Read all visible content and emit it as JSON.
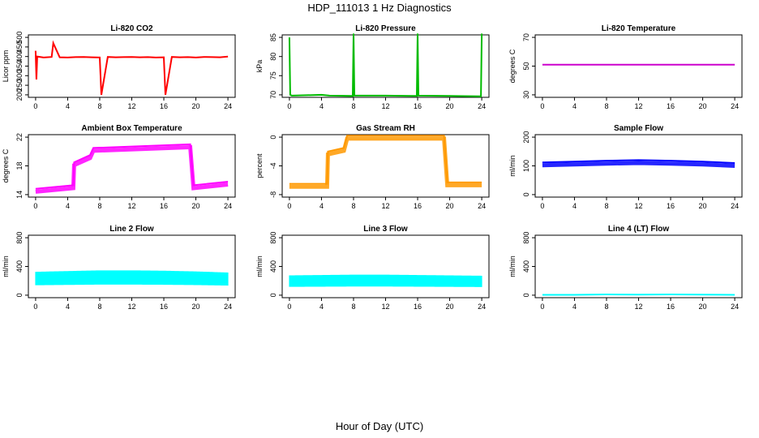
{
  "figure": {
    "title": "HDP_111013  1 Hz Diagnostics",
    "xlabel": "Hour of Day (UTC)"
  },
  "chart_data": [
    {
      "type": "line",
      "title": "Li-820 CO2",
      "ylabel": "Licor ppm",
      "color": "#ff0000",
      "xlim": [
        0,
        24
      ],
      "ylim": [
        200,
        500
      ],
      "xticks": [
        0,
        4,
        8,
        12,
        16,
        20,
        24
      ],
      "yticks": [
        200,
        250,
        300,
        350,
        400,
        450,
        500
      ],
      "series": [
        {
          "name": "",
          "x": [
            0,
            0.1,
            0.2,
            1,
            2,
            2.2,
            3,
            4,
            5,
            6,
            7,
            8,
            8.2,
            9,
            10,
            11,
            12,
            13,
            14,
            15,
            16,
            16.2,
            17,
            18,
            19,
            20,
            21,
            22,
            23,
            24
          ],
          "y": [
            430,
            280,
            400,
            395,
            398,
            470,
            396,
            395,
            397,
            398,
            396,
            395,
            200,
            398,
            396,
            397,
            398,
            396,
            397,
            395,
            396,
            200,
            398,
            396,
            397,
            395,
            398,
            397,
            396,
            400
          ]
        }
      ]
    },
    {
      "type": "line",
      "title": "Li-820 Pressure",
      "ylabel": "kPa",
      "color": "#00bb00",
      "xlim": [
        0,
        24
      ],
      "ylim": [
        70,
        85
      ],
      "xticks": [
        0,
        4,
        8,
        12,
        16,
        20,
        24
      ],
      "yticks": [
        70,
        75,
        80,
        85
      ],
      "series": [
        {
          "name": "",
          "x": [
            0,
            0.1,
            0.3,
            4,
            5,
            7.9,
            8,
            8.1,
            12,
            15.9,
            16,
            16.1,
            20,
            23.9,
            24
          ],
          "y": [
            85,
            70,
            69.8,
            70,
            69.8,
            69.7,
            86,
            69.8,
            69.8,
            69.7,
            86,
            69.8,
            69.7,
            69.6,
            86
          ]
        }
      ]
    },
    {
      "type": "line",
      "title": "Li-820 Temperature",
      "ylabel": "degrees C",
      "color": "#cc00cc",
      "xlim": [
        0,
        24
      ],
      "ylim": [
        30,
        70
      ],
      "xticks": [
        0,
        4,
        8,
        12,
        16,
        20,
        24
      ],
      "yticks": [
        30,
        50,
        70
      ],
      "series": [
        {
          "name": "",
          "x": [
            0,
            24
          ],
          "y": [
            51,
            51
          ]
        }
      ]
    },
    {
      "type": "line",
      "title": "Ambient Box Temperature",
      "ylabel": "degrees C",
      "color": "#ff00ff",
      "xlim": [
        0,
        24
      ],
      "ylim": [
        14,
        22
      ],
      "xticks": [
        0,
        4,
        8,
        12,
        16,
        20,
        24
      ],
      "yticks": [
        14,
        18,
        22
      ],
      "series": [
        {
          "name": "",
          "x": [
            0,
            4.7,
            4.8,
            6.8,
            7.2,
            19.3,
            19.7,
            24
          ],
          "y": [
            14.8,
            15.3,
            18.5,
            19.5,
            20.5,
            21,
            15.3,
            15.8
          ]
        }
      ]
    },
    {
      "type": "line",
      "title": "Gas Stream RH",
      "ylabel": "percent",
      "color": "#ff9900",
      "xlim": [
        0,
        24
      ],
      "ylim": [
        -8,
        0
      ],
      "xticks": [
        0,
        4,
        8,
        12,
        16,
        20,
        24
      ],
      "yticks": [
        -8,
        -4,
        0
      ],
      "series": [
        {
          "name": "",
          "x": [
            0,
            4.7,
            4.8,
            6.8,
            7.2,
            19.3,
            19.7,
            24
          ],
          "y": [
            -6.5,
            -6.5,
            -2,
            -1.5,
            0.2,
            0.2,
            -6.3,
            -6.3
          ]
        }
      ]
    },
    {
      "type": "line",
      "title": "Sample Flow",
      "ylabel": "ml/min",
      "color": "#0000ff",
      "xlim": [
        0,
        24
      ],
      "ylim": [
        0,
        200
      ],
      "xticks": [
        0,
        4,
        8,
        12,
        16,
        20,
        24
      ],
      "yticks": [
        0,
        100,
        200
      ],
      "series": [
        {
          "name": "",
          "x": [
            0,
            4,
            8,
            12,
            16,
            20,
            24
          ],
          "y": [
            112,
            115,
            118,
            120,
            118,
            115,
            110
          ]
        }
      ]
    },
    {
      "type": "area",
      "title": "Line 2 Flow",
      "ylabel": "ml/min",
      "color": "#00ffff",
      "xlim": [
        0,
        24
      ],
      "ylim": [
        0,
        800
      ],
      "xticks": [
        0,
        4,
        8,
        12,
        16,
        20,
        24
      ],
      "yticks": [
        0,
        400,
        800
      ],
      "series": [
        {
          "name": "",
          "x": [
            0,
            4,
            8,
            12,
            16,
            20,
            24
          ],
          "y": [
            320,
            330,
            340,
            340,
            335,
            325,
            310
          ]
        }
      ]
    },
    {
      "type": "area",
      "title": "Line 3 Flow",
      "ylabel": "ml/min",
      "color": "#00ffff",
      "xlim": [
        0,
        24
      ],
      "ylim": [
        0,
        800
      ],
      "xticks": [
        0,
        4,
        8,
        12,
        16,
        20,
        24
      ],
      "yticks": [
        0,
        400,
        800
      ],
      "series": [
        {
          "name": "",
          "x": [
            0,
            4,
            8,
            12,
            16,
            20,
            24
          ],
          "y": [
            270,
            275,
            280,
            280,
            275,
            270,
            265
          ]
        }
      ]
    },
    {
      "type": "line",
      "title": "Line 4 (LT) Flow",
      "ylabel": "ml/min",
      "color": "#00ffff",
      "xlim": [
        0,
        24
      ],
      "ylim": [
        0,
        800
      ],
      "xticks": [
        0,
        4,
        8,
        12,
        16,
        20,
        24
      ],
      "yticks": [
        0,
        400,
        800
      ],
      "series": [
        {
          "name": "",
          "x": [
            0,
            4,
            8,
            12,
            16,
            20,
            24
          ],
          "y": [
            5,
            5,
            10,
            8,
            10,
            8,
            5
          ]
        }
      ]
    }
  ]
}
